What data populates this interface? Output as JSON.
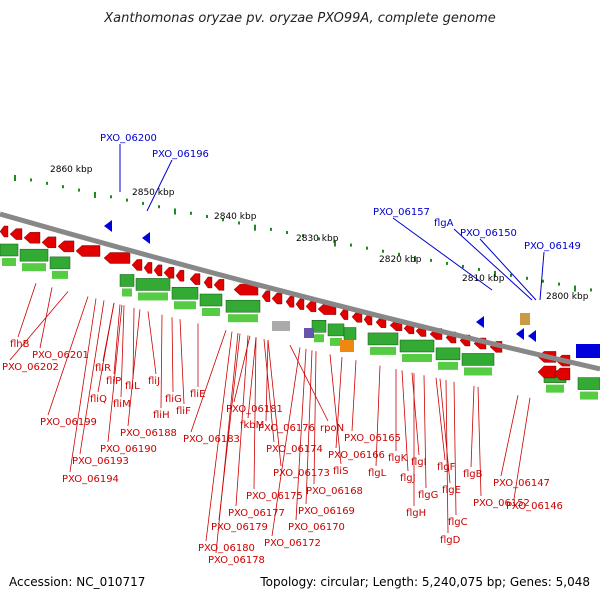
{
  "title": "Xanthomonas oryzae pv. oryzae PXO99A, complete genome",
  "footer": {
    "accession": "Accession: NC_010717",
    "stats": "Topology: circular; Length: 5,240,075 bp; Genes: 5,048"
  },
  "colors": {
    "forward_strand": "#e00000",
    "reverse_strand": "#0000dd",
    "gene_green": "#33aa33",
    "backbone": "#888888",
    "tick": "#228822",
    "blue_label": "#0000cc",
    "red_label": "#cc0000"
  },
  "scale_labels": [
    "2860 kbp",
    "2850 kbp",
    "2840 kbp",
    "2830 kbp",
    "2820 kbp",
    "2810 kbp",
    "2800 kbp"
  ],
  "blue_labels": [
    "PXO_06200",
    "PXO_06196",
    "PXO_06157",
    "flgA",
    "PXO_06150",
    "PXO_06149"
  ],
  "red_labels": [
    "flhB",
    "PXO_06201",
    "PXO_06202",
    "fliR",
    "fliP",
    "fliL",
    "fliJ",
    "fliQ",
    "fliM",
    "fliG",
    "fliF",
    "fliE",
    "fliH",
    "PXO_06199",
    "PXO_06188",
    "PXO_06190",
    "PXO_06193",
    "PXO_06194",
    "PXO_06181",
    "fkbM",
    "PXO_06183",
    "PXO_06176",
    "rpoN",
    "PXO_06174",
    "PXO_06173",
    "PXO_06175",
    "PXO_06177",
    "PXO_06179",
    "PXO_06180",
    "PXO_06178",
    "fliS",
    "PXO_06168",
    "PXO_06169",
    "PXO_06170",
    "PXO_06172",
    "PXO_06165",
    "PXO_06166",
    "flgL",
    "flgK",
    "flgJ",
    "flgI",
    "flgF",
    "flgG",
    "flgE",
    "flgH",
    "flgB",
    "flgC",
    "flgD",
    "PXO_06152",
    "PXO_06147",
    "PXO_06146"
  ]
}
